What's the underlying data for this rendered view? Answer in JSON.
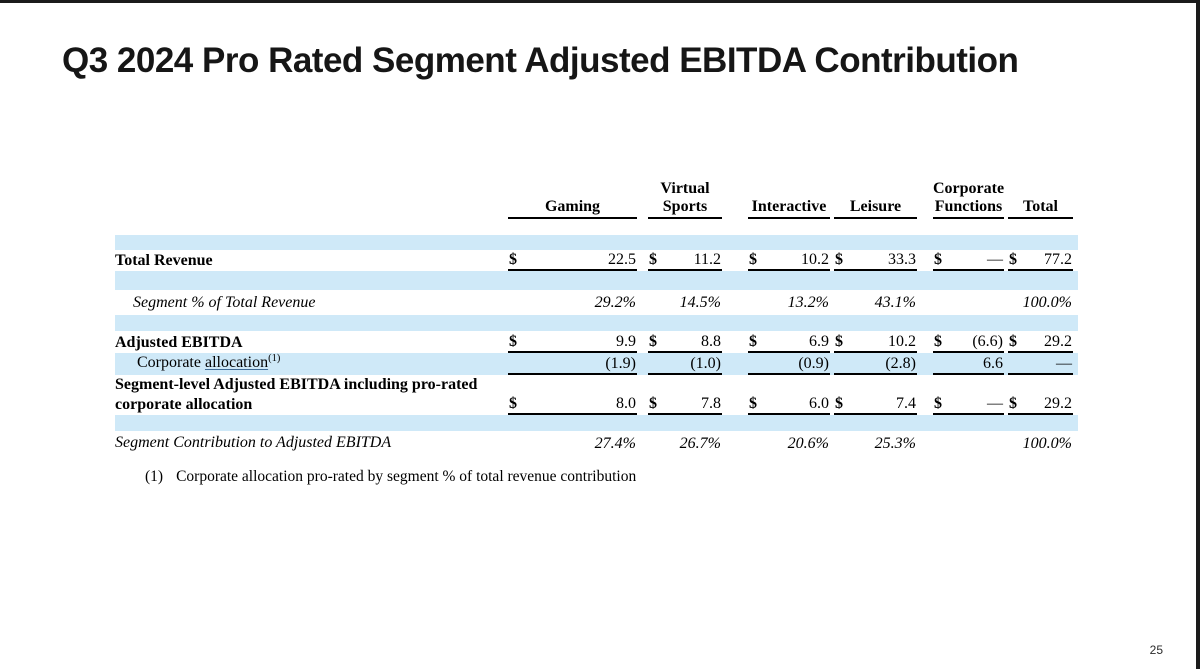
{
  "slide": {
    "title": "Q3 2024 Pro Rated Segment Adjusted EBITDA Contribution",
    "page_number": "25"
  },
  "colors": {
    "stripe_blue": "#cfe9f8",
    "rule_black": "#000000"
  },
  "table": {
    "headers": [
      {
        "top": "",
        "bottom": "Gaming"
      },
      {
        "top": "Virtual",
        "bottom": "Sports"
      },
      {
        "top": "",
        "bottom": "Interactive"
      },
      {
        "top": "",
        "bottom": "Leisure"
      },
      {
        "top": "Corporate",
        "bottom": "Functions"
      },
      {
        "top": "",
        "bottom": "Total"
      }
    ],
    "rows": {
      "total_revenue": {
        "label": "Total Revenue",
        "dollar": "$",
        "values": [
          "22.5",
          "11.2",
          "10.2",
          "33.3",
          "—",
          "77.2"
        ]
      },
      "segment_pct": {
        "label": "Segment % of Total Revenue",
        "values": [
          "29.2%",
          "14.5%",
          "13.2%",
          "43.1%",
          "",
          "100.0%"
        ]
      },
      "adjusted_ebitda": {
        "label": "Adjusted EBITDA",
        "dollar": "$",
        "values": [
          "9.9",
          "8.8",
          "6.9",
          "10.2",
          "(6.6)",
          "29.2"
        ]
      },
      "corporate_allocation": {
        "label_prefix": "Corporate ",
        "label_link": "allocation",
        "label_superscript": "(1)",
        "values": [
          "(1.9)",
          "(1.0)",
          "(0.9)",
          "(2.8)",
          "6.6",
          "—"
        ]
      },
      "segment_level": {
        "label_line1": "Segment-level Adjusted EBITDA including pro-rated",
        "label_line2": "corporate allocation",
        "dollar": "$",
        "values": [
          "8.0",
          "7.8",
          "6.0",
          "7.4",
          "—",
          "29.2"
        ]
      },
      "segment_contribution": {
        "label": "Segment Contribution to Adjusted EBITDA",
        "values": [
          "27.4%",
          "26.7%",
          "20.6%",
          "25.3%",
          "",
          "100.0%"
        ]
      }
    },
    "footnote": {
      "marker": "(1)",
      "text": "Corporate allocation pro-rated by segment % of total revenue contribution"
    }
  }
}
